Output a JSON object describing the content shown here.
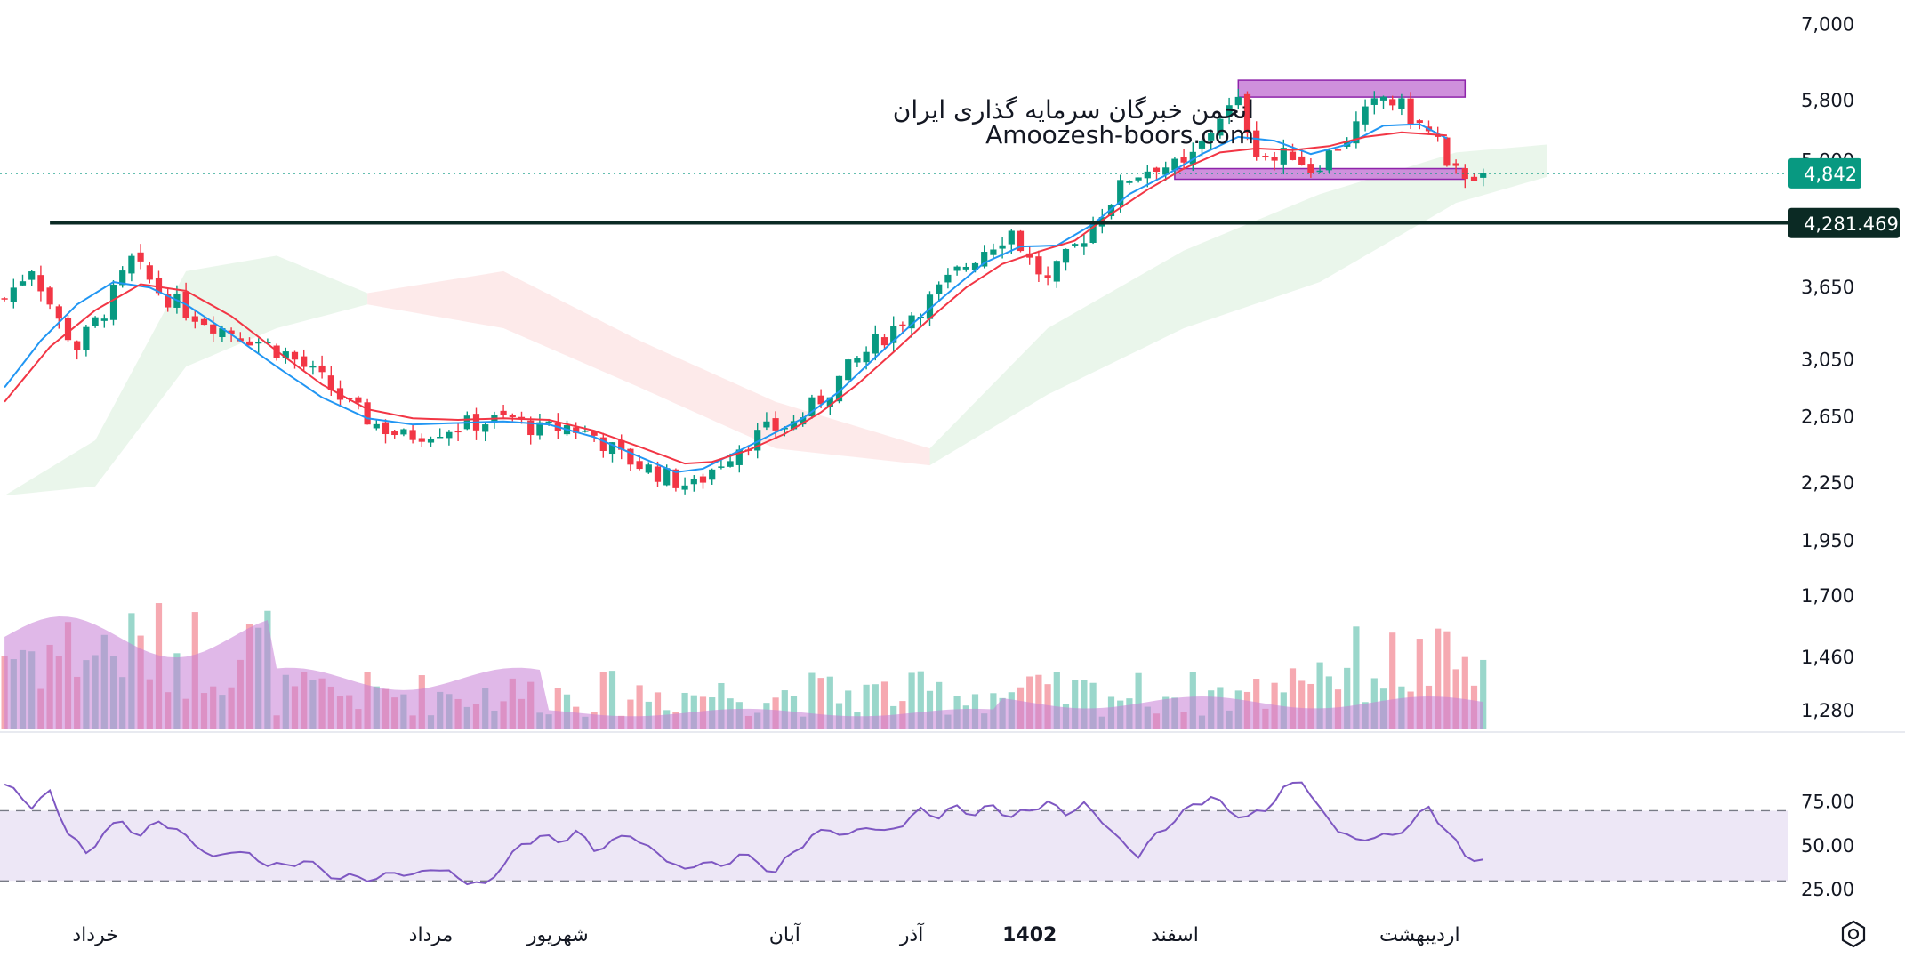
{
  "watermark": {
    "line1": "انجمن خبرگان سرمایه گذاری ایران",
    "line2": "Amoozesh-boors.com"
  },
  "colors": {
    "bull": "#089981",
    "bear": "#f23645",
    "ema_fast": "#2196f3",
    "ema_slow": "#f23645",
    "cloud_bull": "#e8f5e9",
    "cloud_bear": "#fde8e8",
    "zone": "#c77dd6",
    "support_line": "#0b2a24",
    "last_price_badge": "#089981",
    "rsi_line": "#7e57c2",
    "rsi_band": "#ede7f6"
  },
  "chart_data": {
    "type": "candlestick",
    "price_axis": {
      "scale": "log",
      "ticks": [
        "7,000",
        "5,800",
        "5,000",
        "3,650",
        "3,050",
        "2,650",
        "2,250",
        "1,950",
        "1,700",
        "1,460",
        "1,280"
      ],
      "tick_values": [
        7000,
        5800,
        5000,
        3650,
        3050,
        2650,
        2250,
        1950,
        1700,
        1460,
        1280
      ],
      "range": [
        1260,
        7150
      ]
    },
    "time_axis": {
      "labels": [
        "خرداد",
        "مرداد",
        "شهریور",
        "آبان",
        "آذر",
        "1402",
        "اسفند",
        "اردیبهشت"
      ],
      "bold_label": "1402",
      "bar_index": [
        10,
        47,
        61,
        86,
        100,
        113,
        129,
        156
      ]
    },
    "close_path": [
      [
        0,
        3550
      ],
      [
        3,
        3850
      ],
      [
        6,
        3350
      ],
      [
        8,
        3150
      ],
      [
        11,
        3450
      ],
      [
        14,
        3900
      ],
      [
        17,
        3620
      ],
      [
        20,
        3450
      ],
      [
        24,
        3300
      ],
      [
        28,
        3200
      ],
      [
        31,
        3100
      ],
      [
        35,
        2900
      ],
      [
        38,
        2720
      ],
      [
        41,
        2600
      ],
      [
        44,
        2520
      ],
      [
        47,
        2560
      ],
      [
        50,
        2590
      ],
      [
        53,
        2620
      ],
      [
        56,
        2640
      ],
      [
        59,
        2560
      ],
      [
        62,
        2590
      ],
      [
        65,
        2530
      ],
      [
        68,
        2400
      ],
      [
        71,
        2330
      ],
      [
        74,
        2260
      ],
      [
        76,
        2230
      ],
      [
        78,
        2330
      ],
      [
        81,
        2470
      ],
      [
        84,
        2560
      ],
      [
        87,
        2610
      ],
      [
        90,
        2770
      ],
      [
        93,
        2980
      ],
      [
        96,
        3180
      ],
      [
        99,
        3370
      ],
      [
        102,
        3540
      ],
      [
        105,
        3790
      ],
      [
        108,
        4020
      ],
      [
        111,
        4200
      ],
      [
        113,
        3900
      ],
      [
        115,
        3700
      ],
      [
        117,
        3920
      ],
      [
        119,
        4150
      ],
      [
        121,
        4420
      ],
      [
        124,
        4800
      ],
      [
        127,
        4950
      ],
      [
        130,
        4900
      ],
      [
        132,
        5200
      ],
      [
        134,
        5600
      ],
      [
        136,
        5750
      ],
      [
        138,
        5150
      ],
      [
        140,
        5000
      ],
      [
        142,
        5100
      ],
      [
        144,
        4900
      ],
      [
        146,
        5080
      ],
      [
        148,
        5300
      ],
      [
        150,
        5600
      ],
      [
        152,
        5850
      ],
      [
        154,
        5700
      ],
      [
        156,
        5450
      ],
      [
        158,
        5250
      ],
      [
        159,
        4842
      ]
    ],
    "ema_fast": [
      [
        0,
        2850
      ],
      [
        4,
        3200
      ],
      [
        8,
        3500
      ],
      [
        12,
        3700
      ],
      [
        16,
        3650
      ],
      [
        20,
        3500
      ],
      [
        25,
        3250
      ],
      [
        30,
        3000
      ],
      [
        35,
        2780
      ],
      [
        40,
        2640
      ],
      [
        45,
        2600
      ],
      [
        50,
        2610
      ],
      [
        55,
        2620
      ],
      [
        60,
        2600
      ],
      [
        65,
        2520
      ],
      [
        70,
        2400
      ],
      [
        74,
        2310
      ],
      [
        77,
        2330
      ],
      [
        80,
        2410
      ],
      [
        84,
        2520
      ],
      [
        88,
        2640
      ],
      [
        92,
        2820
      ],
      [
        96,
        3070
      ],
      [
        100,
        3330
      ],
      [
        104,
        3600
      ],
      [
        108,
        3880
      ],
      [
        112,
        4040
      ],
      [
        116,
        4050
      ],
      [
        120,
        4270
      ],
      [
        124,
        4600
      ],
      [
        128,
        4820
      ],
      [
        132,
        5080
      ],
      [
        136,
        5300
      ],
      [
        140,
        5250
      ],
      [
        144,
        5080
      ],
      [
        148,
        5200
      ],
      [
        152,
        5450
      ],
      [
        156,
        5470
      ],
      [
        159,
        5280
      ]
    ],
    "ema_slow": [
      [
        0,
        2750
      ],
      [
        5,
        3150
      ],
      [
        10,
        3450
      ],
      [
        15,
        3680
      ],
      [
        20,
        3620
      ],
      [
        25,
        3400
      ],
      [
        30,
        3120
      ],
      [
        35,
        2870
      ],
      [
        40,
        2700
      ],
      [
        45,
        2640
      ],
      [
        50,
        2630
      ],
      [
        55,
        2640
      ],
      [
        60,
        2630
      ],
      [
        65,
        2560
      ],
      [
        70,
        2460
      ],
      [
        75,
        2360
      ],
      [
        78,
        2370
      ],
      [
        82,
        2440
      ],
      [
        86,
        2540
      ],
      [
        90,
        2680
      ],
      [
        94,
        2870
      ],
      [
        98,
        3110
      ],
      [
        102,
        3380
      ],
      [
        106,
        3650
      ],
      [
        110,
        3870
      ],
      [
        114,
        3990
      ],
      [
        118,
        4100
      ],
      [
        122,
        4380
      ],
      [
        126,
        4650
      ],
      [
        130,
        4900
      ],
      [
        134,
        5100
      ],
      [
        138,
        5150
      ],
      [
        142,
        5130
      ],
      [
        146,
        5180
      ],
      [
        150,
        5300
      ],
      [
        154,
        5360
      ],
      [
        159,
        5320
      ]
    ],
    "ichimoku_cloud": [
      {
        "from": 0,
        "to": 40,
        "top": [
          [
            0,
            2180
          ],
          [
            10,
            2500
          ],
          [
            20,
            3800
          ],
          [
            30,
            3950
          ],
          [
            40,
            3600
          ]
        ],
        "bottom": [
          [
            0,
            2180
          ],
          [
            10,
            2230
          ],
          [
            20,
            3000
          ],
          [
            30,
            3300
          ],
          [
            40,
            3500
          ]
        ],
        "sentiment": "bullish"
      },
      {
        "from": 40,
        "to": 102,
        "top": [
          [
            40,
            3600
          ],
          [
            55,
            3800
          ],
          [
            70,
            3200
          ],
          [
            85,
            2750
          ],
          [
            102,
            2450
          ]
        ],
        "bottom": [
          [
            40,
            3500
          ],
          [
            55,
            3300
          ],
          [
            70,
            2850
          ],
          [
            85,
            2450
          ],
          [
            102,
            2350
          ]
        ],
        "sentiment": "bearish"
      },
      {
        "from": 102,
        "to": 170,
        "top": [
          [
            102,
            2450
          ],
          [
            115,
            3300
          ],
          [
            130,
            4000
          ],
          [
            145,
            4600
          ],
          [
            160,
            5100
          ],
          [
            170,
            5200
          ]
        ],
        "bottom": [
          [
            102,
            2350
          ],
          [
            115,
            2800
          ],
          [
            130,
            3300
          ],
          [
            145,
            3700
          ],
          [
            160,
            4500
          ],
          [
            170,
            4800
          ]
        ],
        "sentiment": "bullish"
      }
    ],
    "resistance_zone": {
      "from_bar": 136,
      "to_bar": 161,
      "low": 5850,
      "high": 6100
    },
    "support_zone": {
      "from_bar": 129,
      "to_bar": 161,
      "low": 4780,
      "high": 4900
    },
    "support_line": {
      "value": 4281.469,
      "label": "4,281.469"
    },
    "last_price": {
      "value": 4842,
      "label": "4,842"
    },
    "rsi": {
      "ticks": [
        "75.00",
        "50.00",
        "25.00"
      ],
      "tick_values": [
        75,
        50,
        25
      ],
      "upper_band": 70,
      "lower_band": 30,
      "range": [
        20,
        90
      ],
      "values": [
        [
          0,
          85
        ],
        [
          3,
          73
        ],
        [
          5,
          80
        ],
        [
          7,
          58
        ],
        [
          9,
          45
        ],
        [
          11,
          58
        ],
        [
          13,
          64
        ],
        [
          15,
          55
        ],
        [
          17,
          65
        ],
        [
          19,
          58
        ],
        [
          21,
          52
        ],
        [
          23,
          42
        ],
        [
          25,
          48
        ],
        [
          27,
          44
        ],
        [
          29,
          40
        ],
        [
          31,
          38
        ],
        [
          33,
          42
        ],
        [
          35,
          36
        ],
        [
          37,
          31
        ],
        [
          39,
          33
        ],
        [
          41,
          30
        ],
        [
          43,
          36
        ],
        [
          45,
          32
        ],
        [
          47,
          38
        ],
        [
          49,
          34
        ],
        [
          51,
          30
        ],
        [
          53,
          27
        ],
        [
          55,
          40
        ],
        [
          57,
          50
        ],
        [
          59,
          56
        ],
        [
          61,
          52
        ],
        [
          63,
          58
        ],
        [
          65,
          48
        ],
        [
          67,
          52
        ],
        [
          69,
          57
        ],
        [
          71,
          48
        ],
        [
          73,
          43
        ],
        [
          75,
          35
        ],
        [
          77,
          42
        ],
        [
          79,
          37
        ],
        [
          81,
          46
        ],
        [
          83,
          40
        ],
        [
          85,
          35
        ],
        [
          87,
          47
        ],
        [
          89,
          55
        ],
        [
          91,
          60
        ],
        [
          93,
          55
        ],
        [
          95,
          62
        ],
        [
          97,
          57
        ],
        [
          99,
          63
        ],
        [
          101,
          70
        ],
        [
          103,
          67
        ],
        [
          105,
          72
        ],
        [
          107,
          68
        ],
        [
          109,
          73
        ],
        [
          111,
          66
        ],
        [
          113,
          71
        ],
        [
          115,
          74
        ],
        [
          117,
          69
        ],
        [
          119,
          73
        ],
        [
          121,
          65
        ],
        [
          123,
          52
        ],
        [
          125,
          45
        ],
        [
          127,
          56
        ],
        [
          129,
          65
        ],
        [
          131,
          73
        ],
        [
          133,
          78
        ],
        [
          135,
          70
        ],
        [
          137,
          66
        ],
        [
          139,
          71
        ],
        [
          141,
          82
        ],
        [
          143,
          88
        ],
        [
          145,
          70
        ],
        [
          147,
          60
        ],
        [
          149,
          52
        ],
        [
          151,
          56
        ],
        [
          153,
          55
        ],
        [
          155,
          63
        ],
        [
          157,
          72
        ],
        [
          159,
          58
        ],
        [
          161,
          45
        ],
        [
          163,
          41
        ]
      ]
    },
    "volume_count": 164,
    "note_bar_count": 164
  }
}
